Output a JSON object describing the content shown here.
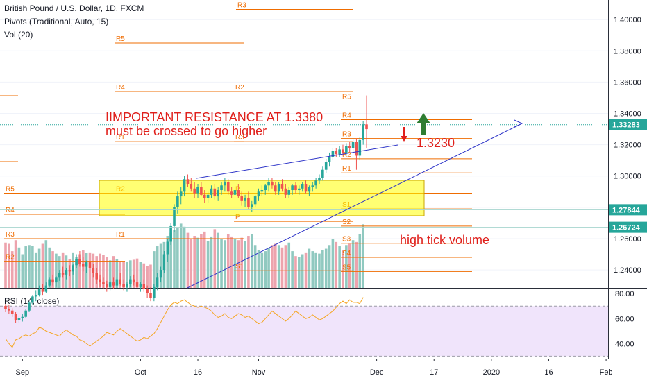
{
  "header": {
    "symbol": "British Pound / U.S. Dollar, 1D, FXCM",
    "pivots": "Pivots (Traditional, Auto, 15)",
    "volume": "Vol (20)",
    "rsi": "RSI (14, close)"
  },
  "chart_data": {
    "type": "candlestick",
    "title": "British Pound / U.S. Dollar, 1D, FXCM",
    "price_axis": {
      "ticks": [
        "1.40000",
        "1.38000",
        "1.36000",
        "1.34000",
        "1.32000",
        "1.30000",
        "1.28000",
        "1.26000",
        "1.24000"
      ],
      "tick_values": [
        1.4,
        1.38,
        1.36,
        1.34,
        1.32,
        1.3,
        1.28,
        1.26,
        1.24
      ],
      "range": [
        1.2285,
        1.4125
      ]
    },
    "price_labels": [
      {
        "text": "1.33283",
        "value": 1.33283,
        "color": "#26a69a"
      },
      {
        "text": "1.27844",
        "value": 1.27844,
        "color": "#26a69a"
      },
      {
        "text": "1.26724",
        "value": 1.26724,
        "color": "#26a69a"
      }
    ],
    "time_axis": {
      "labels": [
        "Sep",
        "Oct",
        "16",
        "Nov",
        "Dec",
        "17",
        "2020",
        "16",
        "Feb"
      ],
      "label_bars": [
        5,
        40,
        57,
        75,
        110,
        127,
        144,
        161,
        178
      ]
    },
    "rsi_axis": {
      "ticks": [
        "80.00",
        "60.00",
        "40.00"
      ],
      "tick_values": [
        80,
        60,
        40
      ],
      "range": [
        28,
        84
      ],
      "bands": [
        70,
        30
      ]
    },
    "candles": [
      [
        1.217,
        1.219,
        1.213,
        1.215
      ],
      [
        1.215,
        1.2175,
        1.212,
        1.214
      ],
      [
        1.214,
        1.2155,
        1.21,
        1.212
      ],
      [
        1.212,
        1.213,
        1.206,
        1.208
      ],
      [
        1.208,
        1.2105,
        1.206,
        1.209
      ],
      [
        1.209,
        1.212,
        1.207,
        1.21
      ],
      [
        1.21,
        1.215,
        1.209,
        1.214
      ],
      [
        1.214,
        1.22,
        1.213,
        1.219
      ],
      [
        1.219,
        1.224,
        1.218,
        1.223
      ],
      [
        1.223,
        1.227,
        1.22,
        1.224
      ],
      [
        1.224,
        1.23,
        1.223,
        1.228
      ],
      [
        1.228,
        1.231,
        1.224,
        1.226
      ],
      [
        1.226,
        1.232,
        1.225,
        1.23
      ],
      [
        1.23,
        1.235,
        1.229,
        1.234
      ],
      [
        1.234,
        1.237,
        1.23,
        1.232
      ],
      [
        1.232,
        1.236,
        1.229,
        1.235
      ],
      [
        1.235,
        1.24,
        1.233,
        1.238
      ],
      [
        1.238,
        1.242,
        1.235,
        1.237
      ],
      [
        1.237,
        1.241,
        1.234,
        1.24
      ],
      [
        1.24,
        1.243,
        1.236,
        1.239
      ],
      [
        1.239,
        1.244,
        1.237,
        1.243
      ],
      [
        1.243,
        1.25,
        1.241,
        1.247
      ],
      [
        1.247,
        1.252,
        1.242,
        1.244
      ],
      [
        1.244,
        1.248,
        1.239,
        1.242
      ],
      [
        1.242,
        1.246,
        1.238,
        1.245
      ],
      [
        1.245,
        1.249,
        1.24,
        1.241
      ],
      [
        1.241,
        1.244,
        1.235,
        1.238
      ],
      [
        1.238,
        1.241,
        1.231,
        1.234
      ],
      [
        1.234,
        1.237,
        1.229,
        1.232
      ],
      [
        1.232,
        1.235,
        1.228,
        1.231
      ],
      [
        1.231,
        1.233,
        1.226,
        1.229
      ],
      [
        1.229,
        1.233,
        1.227,
        1.232
      ],
      [
        1.232,
        1.235,
        1.228,
        1.23
      ],
      [
        1.23,
        1.235,
        1.228,
        1.234
      ],
      [
        1.234,
        1.238,
        1.23,
        1.231
      ],
      [
        1.231,
        1.234,
        1.227,
        1.229
      ],
      [
        1.229,
        1.232,
        1.226,
        1.231
      ],
      [
        1.231,
        1.236,
        1.229,
        1.234
      ],
      [
        1.234,
        1.237,
        1.23,
        1.232
      ],
      [
        1.232,
        1.234,
        1.227,
        1.229
      ],
      [
        1.229,
        1.232,
        1.226,
        1.231
      ],
      [
        1.231,
        1.234,
        1.226,
        1.228
      ],
      [
        1.228,
        1.23,
        1.222,
        1.225
      ],
      [
        1.225,
        1.229,
        1.22,
        1.222
      ],
      [
        1.222,
        1.231,
        1.22,
        1.229
      ],
      [
        1.229,
        1.238,
        1.227,
        1.235
      ],
      [
        1.235,
        1.242,
        1.232,
        1.24
      ],
      [
        1.24,
        1.252,
        1.238,
        1.25
      ],
      [
        1.25,
        1.26,
        1.245,
        1.258
      ],
      [
        1.258,
        1.27,
        1.256,
        1.268
      ],
      [
        1.268,
        1.282,
        1.264,
        1.28
      ],
      [
        1.28,
        1.29,
        1.276,
        1.287
      ],
      [
        1.287,
        1.293,
        1.282,
        1.29
      ],
      [
        1.29,
        1.3,
        1.287,
        1.298
      ],
      [
        1.298,
        1.301,
        1.293,
        1.295
      ],
      [
        1.295,
        1.299,
        1.29,
        1.292
      ],
      [
        1.292,
        1.296,
        1.286,
        1.289
      ],
      [
        1.289,
        1.295,
        1.286,
        1.293
      ],
      [
        1.293,
        1.296,
        1.287,
        1.288
      ],
      [
        1.288,
        1.291,
        1.283,
        1.286
      ],
      [
        1.286,
        1.29,
        1.283,
        1.288
      ],
      [
        1.288,
        1.294,
        1.286,
        1.292
      ],
      [
        1.292,
        1.295,
        1.285,
        1.287
      ],
      [
        1.287,
        1.293,
        1.284,
        1.291
      ],
      [
        1.291,
        1.296,
        1.288,
        1.294
      ],
      [
        1.294,
        1.299,
        1.29,
        1.296
      ],
      [
        1.296,
        1.298,
        1.288,
        1.29
      ],
      [
        1.29,
        1.293,
        1.286,
        1.288
      ],
      [
        1.288,
        1.293,
        1.286,
        1.291
      ],
      [
        1.291,
        1.295,
        1.286,
        1.287
      ],
      [
        1.287,
        1.29,
        1.281,
        1.284
      ],
      [
        1.284,
        1.288,
        1.28,
        1.286
      ],
      [
        1.286,
        1.29,
        1.279,
        1.28
      ],
      [
        1.28,
        1.284,
        1.277,
        1.282
      ],
      [
        1.282,
        1.288,
        1.28,
        1.287
      ],
      [
        1.287,
        1.292,
        1.284,
        1.29
      ],
      [
        1.29,
        1.294,
        1.287,
        1.291
      ],
      [
        1.291,
        1.295,
        1.288,
        1.294
      ],
      [
        1.294,
        1.299,
        1.29,
        1.296
      ],
      [
        1.296,
        1.299,
        1.292,
        1.294
      ],
      [
        1.294,
        1.296,
        1.288,
        1.29
      ],
      [
        1.29,
        1.296,
        1.288,
        1.295
      ],
      [
        1.295,
        1.298,
        1.29,
        1.292
      ],
      [
        1.292,
        1.295,
        1.286,
        1.288
      ],
      [
        1.288,
        1.293,
        1.286,
        1.291
      ],
      [
        1.291,
        1.295,
        1.288,
        1.294
      ],
      [
        1.294,
        1.296,
        1.289,
        1.291
      ],
      [
        1.291,
        1.294,
        1.288,
        1.292
      ],
      [
        1.292,
        1.296,
        1.29,
        1.295
      ],
      [
        1.295,
        1.297,
        1.289,
        1.29
      ],
      [
        1.29,
        1.294,
        1.287,
        1.293
      ],
      [
        1.293,
        1.296,
        1.29,
        1.294
      ],
      [
        1.294,
        1.299,
        1.292,
        1.297
      ],
      [
        1.297,
        1.301,
        1.295,
        1.299
      ],
      [
        1.299,
        1.306,
        1.297,
        1.304
      ],
      [
        1.304,
        1.311,
        1.302,
        1.309
      ],
      [
        1.309,
        1.315,
        1.306,
        1.312
      ],
      [
        1.312,
        1.318,
        1.31,
        1.316
      ],
      [
        1.316,
        1.318,
        1.312,
        1.314
      ],
      [
        1.314,
        1.319,
        1.312,
        1.317
      ],
      [
        1.317,
        1.32,
        1.313,
        1.315
      ],
      [
        1.315,
        1.321,
        1.313,
        1.319
      ],
      [
        1.319,
        1.322,
        1.315,
        1.318
      ],
      [
        1.318,
        1.324,
        1.315,
        1.322
      ],
      [
        1.322,
        1.324,
        1.304,
        1.313
      ],
      [
        1.313,
        1.325,
        1.31,
        1.323
      ],
      [
        1.323,
        1.335,
        1.32,
        1.333
      ],
      [
        1.333,
        1.3515,
        1.318,
        1.33
      ]
    ],
    "volume": [
      74,
      72,
      60,
      78,
      66,
      55,
      68,
      70,
      69,
      58,
      64,
      72,
      78,
      66,
      60,
      56,
      52,
      58,
      53,
      47,
      58,
      50,
      55,
      62,
      57,
      58,
      56,
      52,
      56,
      54,
      50,
      45,
      52,
      47,
      44,
      42,
      42,
      45,
      46,
      48,
      42,
      40,
      36,
      38,
      60,
      68,
      72,
      75,
      85,
      90,
      95,
      98,
      105,
      100,
      90,
      80,
      85,
      82,
      88,
      92,
      76,
      84,
      96,
      90,
      80,
      78,
      88,
      84,
      80,
      78,
      82,
      76,
      85,
      88,
      70,
      62,
      58,
      60,
      65,
      70,
      72,
      70,
      66,
      70,
      74,
      60,
      52,
      50,
      55,
      58,
      64,
      60,
      58,
      56,
      62,
      64,
      70,
      80,
      75,
      68,
      62,
      70,
      72,
      78,
      75,
      88,
      104
    ],
    "rsi": [
      44,
      40,
      37,
      43,
      44,
      46,
      47,
      46,
      48,
      49,
      53,
      52,
      50,
      49,
      48,
      47,
      46,
      49,
      51,
      49,
      47,
      46,
      43,
      42,
      40,
      38,
      40,
      42,
      44,
      46,
      49,
      48,
      47,
      50,
      52,
      50,
      48,
      46,
      44,
      42,
      43,
      45,
      44,
      46,
      48,
      52,
      57,
      62,
      67,
      71,
      73,
      72,
      74,
      75,
      73,
      71,
      70,
      69,
      70,
      69,
      68,
      66,
      63,
      61,
      62,
      64,
      61,
      60,
      62,
      64,
      63,
      61,
      62,
      60,
      58,
      56,
      57,
      60,
      63,
      66,
      64,
      62,
      60,
      58,
      60,
      63,
      66,
      64,
      62,
      60,
      61,
      63,
      61,
      59,
      60,
      62,
      64,
      66,
      69,
      72,
      74,
      72,
      75,
      73,
      73,
      72,
      77
    ],
    "pivots": [
      {
        "label": "R3",
        "value": 1.4065
      },
      {
        "label": "R5",
        "value": 1.385
      },
      {
        "label": "R4",
        "value": 1.354
      },
      {
        "label": "R2",
        "value": 1.354
      },
      {
        "label": "R1",
        "value": 1.322
      },
      {
        "label": "R3",
        "value": 1.322
      },
      {
        "label": "R5",
        "value": 1.348
      },
      {
        "label": "R4",
        "value": 1.336
      },
      {
        "label": "R3",
        "value": 1.324
      },
      {
        "label": "R2",
        "value": 1.311
      },
      {
        "label": "R1",
        "value": 1.302
      },
      {
        "label": "P",
        "value": 1.289
      },
      {
        "label": "S1",
        "value": 1.279
      },
      {
        "label": "S2",
        "value": 1.268
      },
      {
        "label": "S3",
        "value": 1.257
      },
      {
        "label": "S4",
        "value": 1.248
      },
      {
        "label": "S5",
        "value": 1.239
      },
      {
        "label": "R5",
        "value": 1.289
      },
      {
        "label": "R2",
        "value": 1.289
      },
      {
        "label": "R4",
        "value": 1.2755
      },
      {
        "label": "P",
        "value": 1.271
      },
      {
        "label": "R3",
        "value": 1.26
      },
      {
        "label": "R1",
        "value": 1.26
      },
      {
        "label": "R2",
        "value": 1.2455
      },
      {
        "label": "S1",
        "value": 1.2395
      }
    ],
    "annotations": {
      "resistance_line1": "IIMPORTANT RESISTANCE AT 1.3380",
      "resistance_line2": "must be crossed to go higher",
      "price_label": "1.3230",
      "volume_label": "high tick volume"
    }
  }
}
